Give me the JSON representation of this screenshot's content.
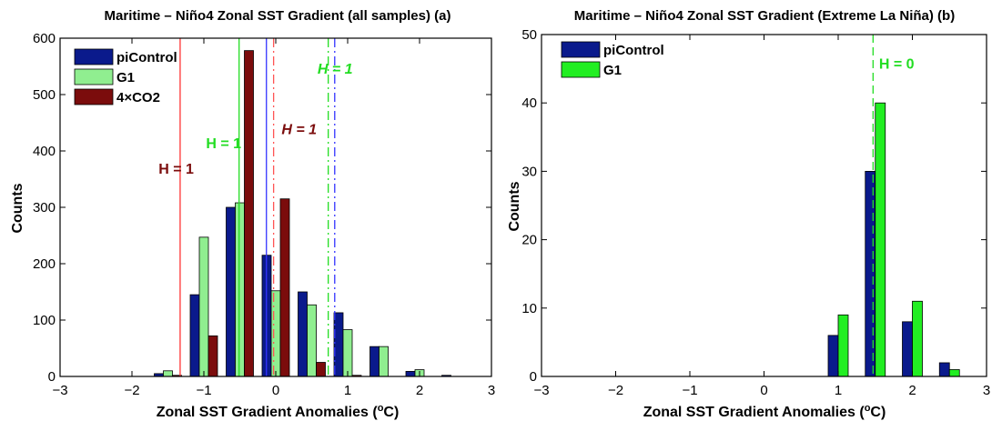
{
  "chart_data": [
    {
      "type": "bar",
      "title": "Maritime – Niño4 Zonal SST Gradient (all samples) (a)",
      "xlabel": "Zonal SST Gradient Anomalies (",
      "xlabel_unit": "o",
      "xlabel_end": "C)",
      "ylabel": "Counts",
      "xlim": [
        -3,
        3
      ],
      "ylim": [
        0,
        600
      ],
      "xticks": [
        -3,
        -2,
        -1,
        0,
        1,
        2,
        3
      ],
      "xtick_labels": [
        "−3",
        "−2",
        "−1",
        "0",
        "1",
        "2",
        "3"
      ],
      "yticks": [
        0,
        100,
        200,
        300,
        400,
        500,
        600
      ],
      "grid": false,
      "legend_position": "top-left",
      "x": [
        -1.5,
        -1.0,
        -0.5,
        0.0,
        0.5,
        1.0,
        1.5,
        2.0,
        2.5
      ],
      "series": [
        {
          "name": "piControl",
          "color": "#0a1a8c",
          "values": [
            5,
            145,
            300,
            215,
            150,
            113,
            53,
            9,
            2
          ]
        },
        {
          "name": "G1",
          "color": "#90ee90",
          "values": [
            10,
            247,
            308,
            152,
            127,
            83,
            53,
            12,
            0
          ]
        },
        {
          "name": "4×CO2",
          "color": "#7b0c0c",
          "values": [
            2,
            72,
            578,
            315,
            25,
            2,
            0,
            0,
            0
          ]
        }
      ],
      "vlines": [
        {
          "x": -1.33,
          "color": "#ff3333",
          "style": "solid"
        },
        {
          "x": -0.13,
          "color": "#3333ff",
          "style": "solid"
        },
        {
          "x": -0.51,
          "color": "#22dd22",
          "style": "solid"
        },
        {
          "x": -0.03,
          "color": "#ff5555",
          "style": "dashdot"
        },
        {
          "x": 0.73,
          "color": "#22dd22",
          "style": "dashdot"
        },
        {
          "x": 0.82,
          "color": "#3333ff",
          "style": "dashdot"
        }
      ],
      "annotations": [
        {
          "text": "H = 1",
          "x": -1.63,
          "y": 360,
          "color": "#7b0c0c",
          "italic": false
        },
        {
          "text": "H = 1",
          "x": -0.97,
          "y": 405,
          "color": "#22dd22",
          "italic": false
        },
        {
          "text": "H = 1",
          "x": 0.08,
          "y": 430,
          "color": "#7b0c0c",
          "italic": true
        },
        {
          "text": "H = 1",
          "x": 0.58,
          "y": 537,
          "color": "#22dd22",
          "italic": true
        }
      ]
    },
    {
      "type": "bar",
      "title": "Maritime – Niño4 Zonal SST Gradient (Extreme La Niña) (b)",
      "xlabel": "Zonal SST Gradient Anomalies (",
      "xlabel_unit": "o",
      "xlabel_end": "C)",
      "ylabel": "Counts",
      "xlim": [
        -3,
        3
      ],
      "ylim": [
        0,
        50
      ],
      "xticks": [
        -3,
        -2,
        -1,
        0,
        1,
        2,
        3
      ],
      "xtick_labels": [
        "−3",
        "−2",
        "−1",
        "0",
        "1",
        "2",
        "3"
      ],
      "yticks": [
        0,
        10,
        20,
        30,
        40,
        50
      ],
      "grid": false,
      "legend_position": "top-left",
      "x": [
        1.0,
        1.5,
        2.0,
        2.5
      ],
      "series": [
        {
          "name": "piControl",
          "color": "#0a1a8c",
          "values": [
            6,
            30,
            8,
            2
          ]
        },
        {
          "name": "G1",
          "color": "#22ee22",
          "values": [
            9,
            40,
            11,
            1
          ]
        }
      ],
      "vlines": [
        {
          "x": 1.47,
          "color": "#22dd22",
          "style": "dashed"
        }
      ],
      "annotations": [
        {
          "text": "H = 0",
          "x": 1.55,
          "y": 45,
          "color": "#22dd22",
          "italic": false
        }
      ]
    }
  ]
}
